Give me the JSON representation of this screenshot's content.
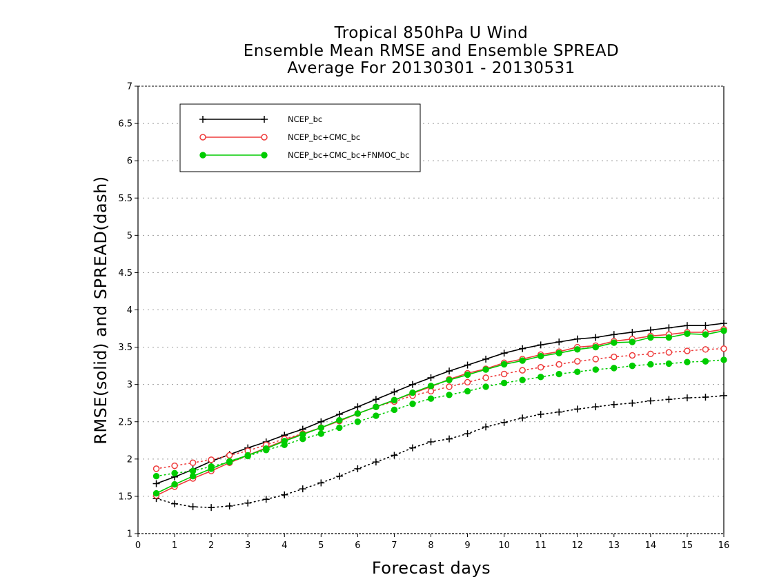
{
  "chart_data": {
    "type": "line",
    "title_lines": [
      "Tropical 850hPa U Wind",
      "Ensemble Mean RMSE and Ensemble SPREAD",
      "Average For 20130301 - 20130531"
    ],
    "xlabel": "Forecast days",
    "ylabel": "RMSE(solid) and SPREAD(dash)",
    "xlim": [
      0,
      16
    ],
    "ylim": [
      1,
      7
    ],
    "x_ticks": [
      0,
      1,
      2,
      3,
      4,
      5,
      6,
      7,
      8,
      9,
      10,
      11,
      12,
      13,
      14,
      15,
      16
    ],
    "y_ticks": [
      1,
      1.5,
      2,
      2.5,
      3,
      3.5,
      4,
      4.5,
      5,
      5.5,
      6,
      6.5,
      7
    ],
    "y_tick_labels": [
      "1",
      "1.5",
      "2",
      "2.5",
      "3",
      "3.5",
      "4",
      "4.5",
      "5",
      "5.5",
      "6",
      "6.5",
      "7"
    ],
    "grid": "horizontal-dotted",
    "legend_position": "top-left",
    "x": [
      0.5,
      1,
      1.5,
      2,
      2.5,
      3,
      3.5,
      4,
      4.5,
      5,
      5.5,
      6,
      6.5,
      7,
      7.5,
      8,
      8.5,
      9,
      9.5,
      10,
      10.5,
      11,
      11.5,
      12,
      12.5,
      13,
      13.5,
      14,
      14.5,
      15,
      15.5,
      16
    ],
    "series": [
      {
        "name": "NCEP_bc",
        "color": "#000000",
        "marker": "plus",
        "rmse": [
          1.67,
          1.76,
          1.86,
          1.97,
          2.06,
          2.15,
          2.23,
          2.32,
          2.4,
          2.5,
          2.6,
          2.7,
          2.8,
          2.9,
          3.0,
          3.09,
          3.18,
          3.26,
          3.34,
          3.42,
          3.48,
          3.53,
          3.57,
          3.61,
          3.63,
          3.67,
          3.7,
          3.73,
          3.76,
          3.79,
          3.79,
          3.82
        ],
        "spread": [
          1.47,
          1.4,
          1.36,
          1.35,
          1.37,
          1.41,
          1.46,
          1.52,
          1.6,
          1.68,
          1.77,
          1.87,
          1.96,
          2.05,
          2.15,
          2.23,
          2.27,
          2.34,
          2.43,
          2.49,
          2.55,
          2.6,
          2.63,
          2.67,
          2.7,
          2.73,
          2.75,
          2.78,
          2.8,
          2.82,
          2.83,
          2.85
        ]
      },
      {
        "name": "NCEP_bc+CMC_bc",
        "color": "#ee3b3b",
        "marker": "open-circle",
        "rmse": [
          1.51,
          1.63,
          1.74,
          1.84,
          1.95,
          2.05,
          2.15,
          2.25,
          2.34,
          2.42,
          2.51,
          2.61,
          2.7,
          2.79,
          2.88,
          2.97,
          3.07,
          3.15,
          3.21,
          3.29,
          3.34,
          3.4,
          3.44,
          3.5,
          3.52,
          3.58,
          3.61,
          3.65,
          3.67,
          3.7,
          3.7,
          3.74
        ],
        "spread": [
          1.87,
          1.91,
          1.95,
          1.99,
          2.05,
          2.11,
          2.19,
          2.27,
          2.34,
          2.42,
          2.51,
          2.61,
          2.7,
          2.77,
          2.85,
          2.91,
          2.97,
          3.03,
          3.09,
          3.14,
          3.19,
          3.23,
          3.27,
          3.31,
          3.34,
          3.37,
          3.39,
          3.41,
          3.43,
          3.45,
          3.47,
          3.48
        ]
      },
      {
        "name": "NCEP_bc+CMC_bc+FNMOC_bc",
        "color": "#00cc00",
        "marker": "filled-circle",
        "rmse": [
          1.54,
          1.66,
          1.77,
          1.87,
          1.97,
          2.05,
          2.14,
          2.24,
          2.33,
          2.42,
          2.52,
          2.61,
          2.7,
          2.79,
          2.89,
          2.98,
          3.06,
          3.13,
          3.2,
          3.27,
          3.32,
          3.38,
          3.42,
          3.47,
          3.5,
          3.56,
          3.57,
          3.63,
          3.63,
          3.68,
          3.67,
          3.72
        ],
        "spread": [
          1.77,
          1.81,
          1.84,
          1.9,
          1.96,
          2.04,
          2.12,
          2.19,
          2.27,
          2.34,
          2.42,
          2.5,
          2.58,
          2.66,
          2.74,
          2.81,
          2.86,
          2.91,
          2.97,
          3.02,
          3.06,
          3.1,
          3.14,
          3.17,
          3.2,
          3.22,
          3.25,
          3.27,
          3.28,
          3.3,
          3.31,
          3.33
        ]
      }
    ]
  }
}
